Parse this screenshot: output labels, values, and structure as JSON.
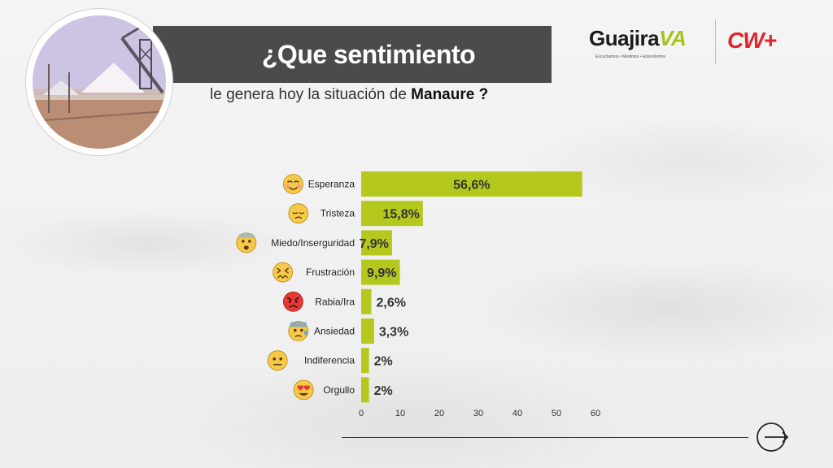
{
  "header": {
    "title": "¿Que sentimiento",
    "subtitle_prefix": "le genera hoy la situación de ",
    "subtitle_bold": "Manaure ?"
  },
  "logos": {
    "guajira_text": "Guajira",
    "guajira_va": "VA",
    "guajira_tagline": "Escuchamos • Medimos • Entendemos",
    "cw_text": "CW+"
  },
  "colors": {
    "bar": "#b5c81d",
    "title_bg": "#4b4b4b",
    "brand_red": "#e2242f",
    "brand_green": "#a9c21a"
  },
  "chart_data": {
    "type": "bar",
    "orientation": "horizontal",
    "categories": [
      "Esperanza",
      "Tristeza",
      "Miedo/Inserguridad",
      "Frustración",
      "Rabia/Ira",
      "Ansiedad",
      "Indiferencia",
      "Orgullo"
    ],
    "values": [
      56.6,
      15.8,
      7.9,
      9.9,
      2.6,
      3.3,
      2,
      2
    ],
    "data_labels": [
      "56,6%",
      "15,8%",
      "7,9%",
      "9,9%",
      "2,6%",
      "3,3%",
      "2%",
      "2%"
    ],
    "icons": [
      "smiling-emoji-icon",
      "sad-emoji-icon",
      "fearful-emoji-icon",
      "frustrated-emoji-icon",
      "angry-emoji-icon",
      "anxious-emoji-icon",
      "neutral-emoji-icon",
      "heart-eyes-emoji-icon"
    ],
    "xlim": [
      0,
      60
    ],
    "xticks": [
      0,
      10,
      20,
      30,
      40,
      50,
      60
    ],
    "xtick_labels": [
      "0",
      "10",
      "20",
      "30",
      "40",
      "50",
      "60"
    ],
    "grid": false
  }
}
